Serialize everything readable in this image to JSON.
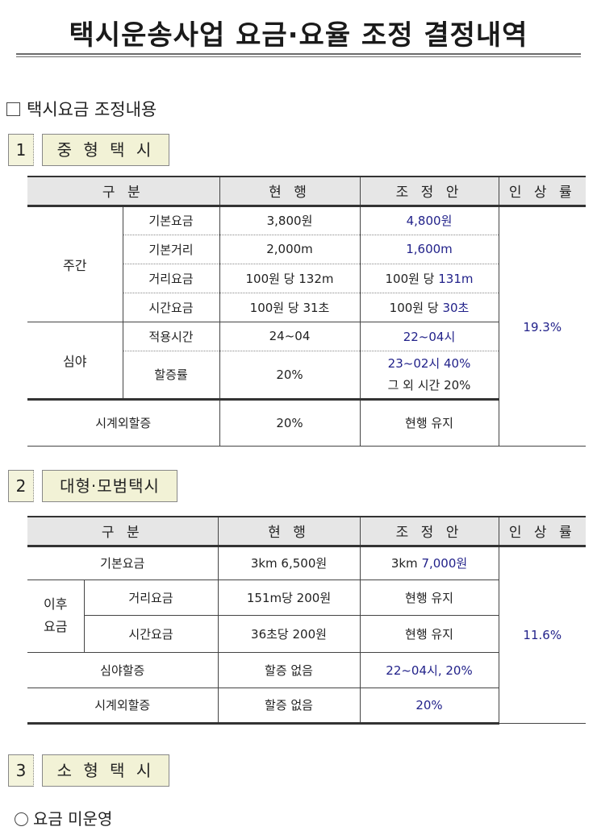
{
  "title": "택시운송사업 요금·요율 조정 결정내역",
  "section_heading": "택시요금 조정내용",
  "blocks": [
    {
      "num": "1",
      "label": "중 형 택 시"
    },
    {
      "num": "2",
      "label": "대형·모범택시"
    },
    {
      "num": "3",
      "label": "소 형 택 시"
    }
  ],
  "headers": {
    "category": "구  분",
    "current": "현 행",
    "proposed": "조 정 안",
    "rate": "인 상 률"
  },
  "headers2": {
    "current": "현   행"
  },
  "mid": {
    "day": "주간",
    "night": "심야",
    "rows": [
      {
        "item": "기본요금",
        "current": "3,800원",
        "proposed": "4,800원"
      },
      {
        "item": "기본거리",
        "current": "2,000m",
        "proposed": "1,600m"
      },
      {
        "item": "거리요금",
        "current": "100원 당 132m",
        "proposed_prefix": "100원 당 ",
        "proposed": "131m"
      },
      {
        "item": "시간요금",
        "current": "100원 당 31초",
        "proposed_prefix": "100원 당 ",
        "proposed": "30초"
      },
      {
        "item": "적용시간",
        "current": "24~04",
        "proposed": "22~04시"
      },
      {
        "item": "할증률",
        "current": "20%",
        "proposed": "23~02시 40%",
        "proposed_extra": "그 외 시간 20%"
      }
    ],
    "off_hours": {
      "item": "시계외할증",
      "current": "20%",
      "proposed": "현행 유지"
    },
    "rate": "19.3%"
  },
  "large": {
    "after": "이후 요금",
    "rows": [
      {
        "item": "기본요금",
        "current": "3km 6,500원",
        "proposed_prefix": "3km ",
        "proposed": "7,000원"
      },
      {
        "item": "거리요금",
        "current": "151m당 200원",
        "proposed": "현행 유지"
      },
      {
        "item": "시간요금",
        "current": "36초당 200원",
        "proposed": "현행 유지"
      },
      {
        "item": "심야할증",
        "current": "할증 없음",
        "proposed": "22~04시, 20%"
      },
      {
        "item": "시계외할증",
        "current": "할증 없음",
        "proposed": "20%"
      }
    ],
    "rate": "11.6%"
  },
  "small_note": "요금 미운영"
}
